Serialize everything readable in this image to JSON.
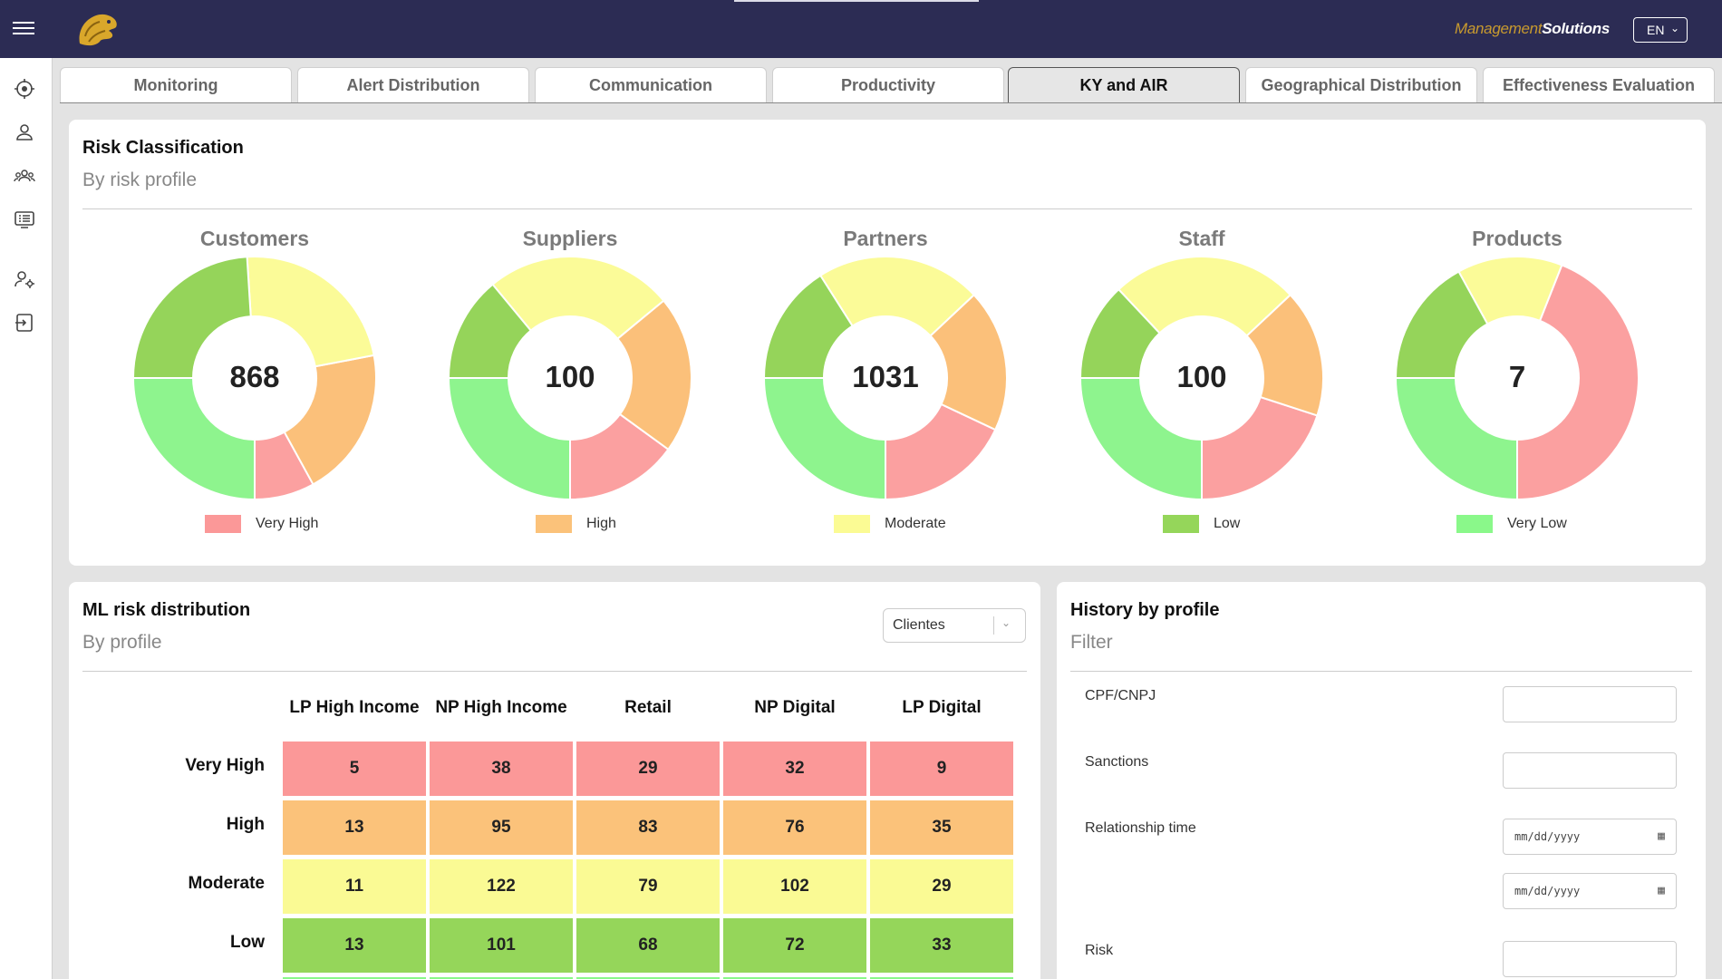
{
  "header": {
    "brand_part1": "Management",
    "brand_part2": "Solutions",
    "language": "EN"
  },
  "sidebar": {
    "icons": [
      "target-icon",
      "user-icon",
      "users-group-icon",
      "list-icon",
      "user-settings-icon",
      "logout-icon"
    ]
  },
  "tabs": [
    {
      "label": "Monitoring"
    },
    {
      "label": "Alert Distribution"
    },
    {
      "label": "Communication"
    },
    {
      "label": "Productivity"
    },
    {
      "label": "KY and AIR"
    },
    {
      "label": "Geographical Distribution"
    },
    {
      "label": "Effectiveness Evaluation"
    }
  ],
  "active_tab": "KY and AIR",
  "risk_card": {
    "title": "Risk Classification",
    "subtitle": "By risk profile"
  },
  "colors": {
    "very_high": "#fba0a0",
    "high": "#fbc07a",
    "moderate": "#fbfb98",
    "low": "#95d45a",
    "very_low": "#8ef48e"
  },
  "chart_data": {
    "type": "pie",
    "donuts": [
      {
        "name": "Customers",
        "total": "868",
        "slices": [
          {
            "label": "Very High",
            "fraction": 0.08
          },
          {
            "label": "High",
            "fraction": 0.2
          },
          {
            "label": "Moderate",
            "fraction": 0.23
          },
          {
            "label": "Low",
            "fraction": 0.24
          },
          {
            "label": "Very Low",
            "fraction": 0.25
          }
        ]
      },
      {
        "name": "Suppliers",
        "total": "100",
        "slices": [
          {
            "label": "Very High",
            "fraction": 0.15
          },
          {
            "label": "High",
            "fraction": 0.21
          },
          {
            "label": "Moderate",
            "fraction": 0.25
          },
          {
            "label": "Low",
            "fraction": 0.14
          },
          {
            "label": "Very Low",
            "fraction": 0.25
          }
        ]
      },
      {
        "name": "Partners",
        "total": "1031",
        "slices": [
          {
            "label": "Very High",
            "fraction": 0.18
          },
          {
            "label": "High",
            "fraction": 0.19
          },
          {
            "label": "Moderate",
            "fraction": 0.22
          },
          {
            "label": "Low",
            "fraction": 0.16
          },
          {
            "label": "Very Low",
            "fraction": 0.25
          }
        ]
      },
      {
        "name": "Staff",
        "total": "100",
        "slices": [
          {
            "label": "Very High",
            "fraction": 0.2
          },
          {
            "label": "High",
            "fraction": 0.17
          },
          {
            "label": "Moderate",
            "fraction": 0.25
          },
          {
            "label": "Low",
            "fraction": 0.13
          },
          {
            "label": "Very Low",
            "fraction": 0.25
          }
        ]
      },
      {
        "name": "Products",
        "total": "7",
        "slices": [
          {
            "label": "Very High",
            "fraction": 0.44
          },
          {
            "label": "High",
            "fraction": 0.0
          },
          {
            "label": "Moderate",
            "fraction": 0.14
          },
          {
            "label": "Low",
            "fraction": 0.17
          },
          {
            "label": "Very Low",
            "fraction": 0.25
          }
        ]
      }
    ]
  },
  "legend": [
    {
      "label": "Very High",
      "color": "#fb9898"
    },
    {
      "label": "High",
      "color": "#fbc27a"
    },
    {
      "label": "Moderate",
      "color": "#fbfb94"
    },
    {
      "label": "Low",
      "color": "#95d65a"
    },
    {
      "label": "Very Low",
      "color": "#8af88a"
    }
  ],
  "ml_card": {
    "title": "ML risk distribution",
    "subtitle": "By profile",
    "select_value": "Clientes",
    "columns": [
      "LP High Income",
      "NP High Income",
      "Retail",
      "NP Digital",
      "LP Digital"
    ],
    "rows": [
      {
        "label": "Very High",
        "color": "#fb9898",
        "values": [
          "5",
          "38",
          "29",
          "32",
          "9"
        ]
      },
      {
        "label": "High",
        "color": "#fbc27a",
        "values": [
          "13",
          "95",
          "83",
          "76",
          "35"
        ]
      },
      {
        "label": "Moderate",
        "color": "#fafa94",
        "values": [
          "11",
          "122",
          "79",
          "102",
          "29"
        ]
      },
      {
        "label": "Low",
        "color": "#95d65a",
        "values": [
          "13",
          "101",
          "68",
          "72",
          "33"
        ]
      }
    ]
  },
  "history_card": {
    "title": "History by profile",
    "subtitle": "Filter",
    "fields": [
      {
        "label": "CPF/CNPJ",
        "value": ""
      },
      {
        "label": "Sanctions",
        "value": ""
      },
      {
        "label": "Relationship time",
        "date_placeholder": "mm/dd/yyyy"
      },
      {
        "label": "Risk",
        "value": ""
      }
    ]
  }
}
